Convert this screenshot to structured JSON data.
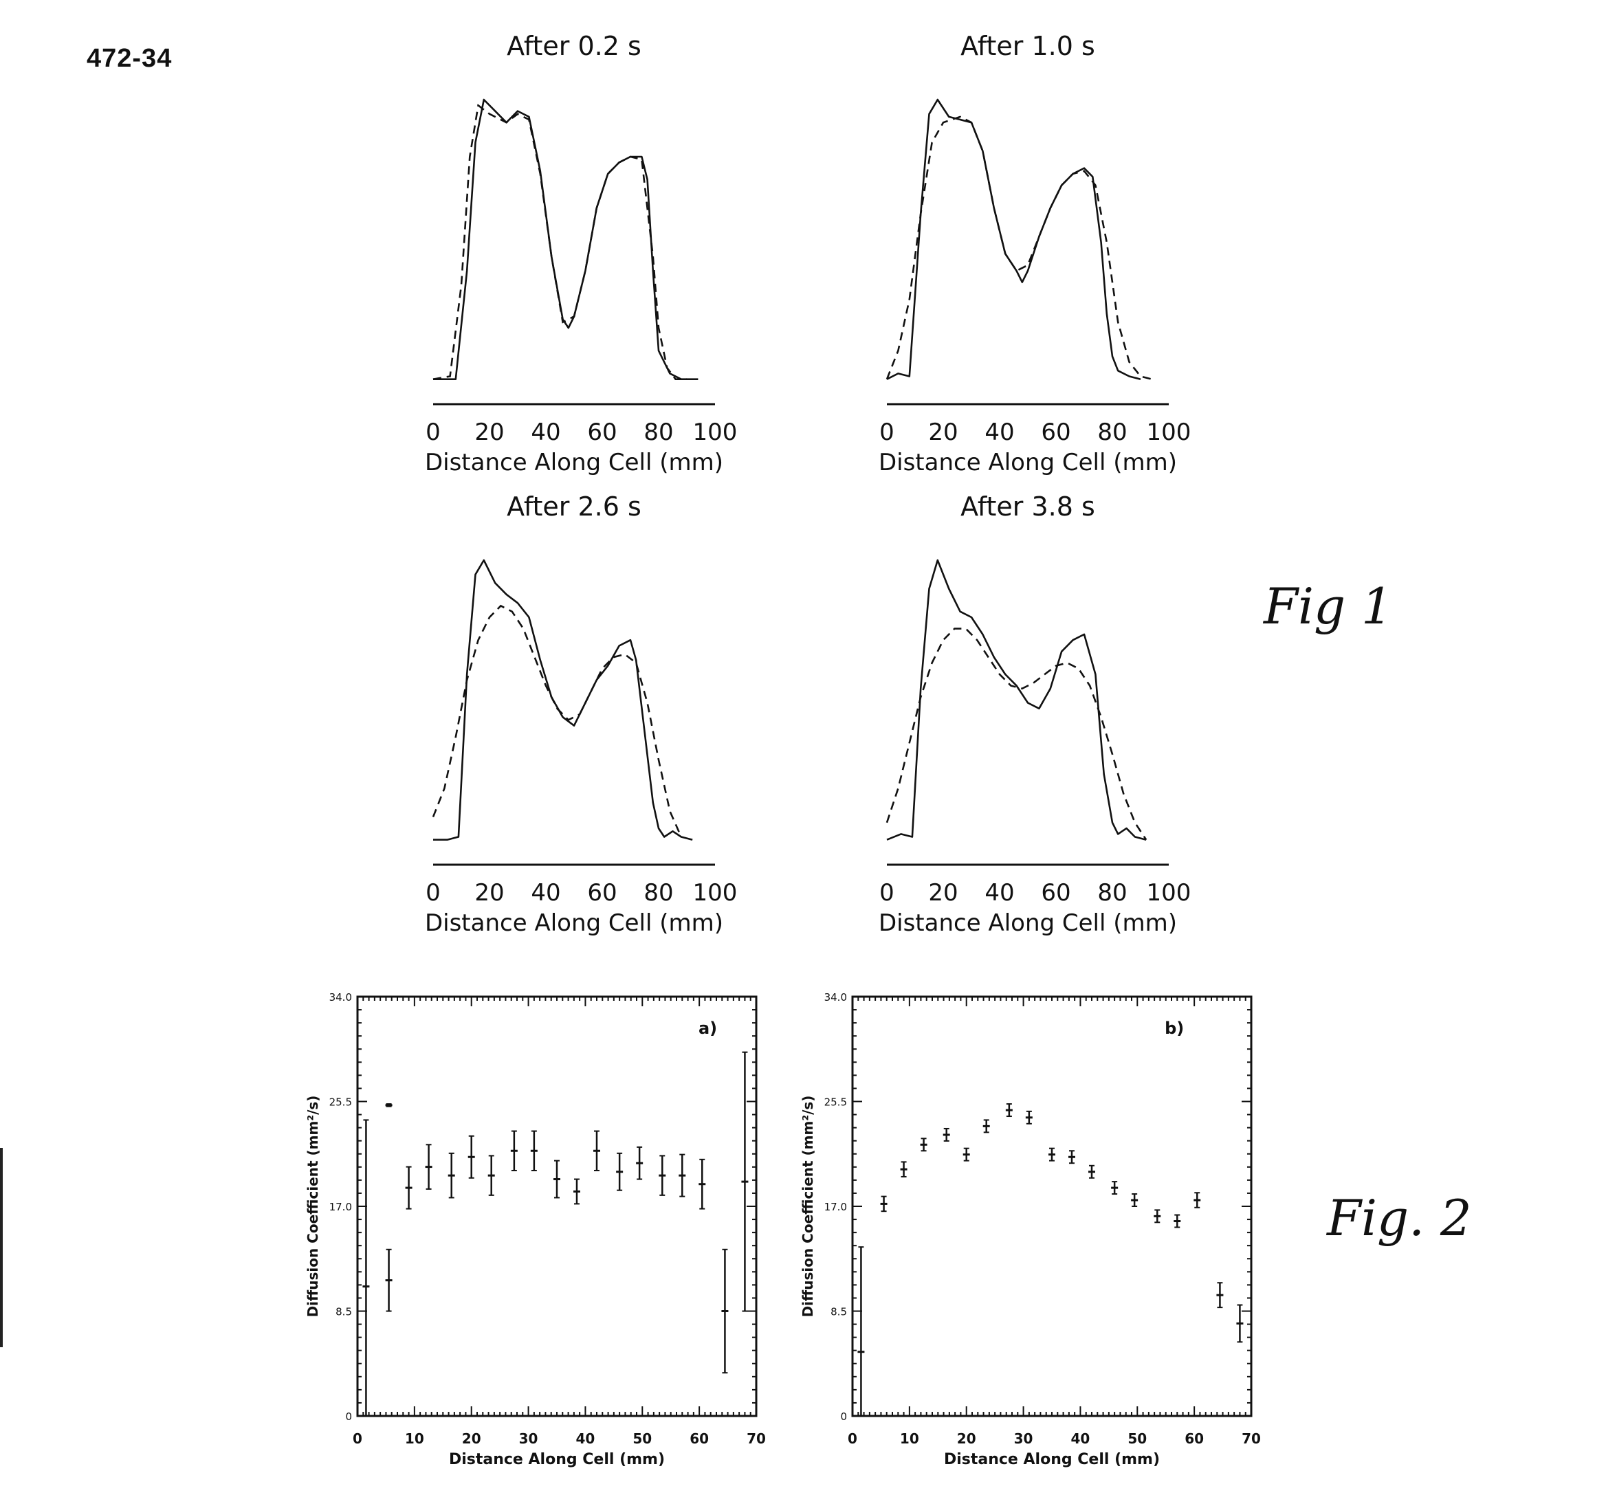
{
  "page": {
    "id": "472-34",
    "fig1_label": "Fig 1",
    "fig2_label": "Fig. 2"
  },
  "chart_data": [
    {
      "type": "line",
      "title": "After 0.2 s",
      "xlabel": "Distance Along Cell (mm)",
      "ylabel": "",
      "xlim": [
        0,
        100
      ],
      "ylim": [
        0,
        1
      ],
      "x_ticks": [
        0,
        20,
        40,
        60,
        80,
        100
      ],
      "series": [
        {
          "style": "solid",
          "x": [
            0,
            8,
            12,
            15,
            18,
            22,
            26,
            30,
            34,
            38,
            42,
            46,
            48,
            50,
            54,
            58,
            62,
            66,
            70,
            74,
            76,
            78,
            80,
            82,
            84,
            88,
            94
          ],
          "y": [
            0.02,
            0.02,
            0.4,
            0.85,
            1.0,
            0.96,
            0.92,
            0.96,
            0.94,
            0.75,
            0.45,
            0.23,
            0.2,
            0.24,
            0.4,
            0.62,
            0.74,
            0.78,
            0.8,
            0.8,
            0.72,
            0.4,
            0.12,
            0.08,
            0.04,
            0.02,
            0.02
          ]
        },
        {
          "style": "dashed",
          "x": [
            0,
            6,
            10,
            13,
            16,
            20,
            26,
            30,
            34,
            38,
            42,
            46,
            50,
            54,
            58,
            62,
            66,
            70,
            74,
            78,
            80,
            83,
            86,
            90
          ],
          "y": [
            0.02,
            0.03,
            0.35,
            0.8,
            0.98,
            0.95,
            0.92,
            0.95,
            0.93,
            0.74,
            0.45,
            0.22,
            0.24,
            0.4,
            0.62,
            0.74,
            0.78,
            0.8,
            0.79,
            0.45,
            0.2,
            0.06,
            0.02,
            0.02
          ]
        }
      ]
    },
    {
      "type": "line",
      "title": "After 1.0 s",
      "xlabel": "Distance Along Cell (mm)",
      "ylabel": "",
      "xlim": [
        0,
        100
      ],
      "ylim": [
        0,
        1
      ],
      "x_ticks": [
        0,
        20,
        40,
        60,
        80,
        100
      ],
      "series": [
        {
          "style": "solid",
          "x": [
            0,
            4,
            8,
            12,
            15,
            18,
            22,
            26,
            30,
            34,
            38,
            42,
            46,
            48,
            50,
            54,
            58,
            62,
            66,
            70,
            73,
            76,
            78,
            80,
            82,
            86,
            90
          ],
          "y": [
            0.02,
            0.04,
            0.03,
            0.6,
            0.95,
            1.0,
            0.94,
            0.93,
            0.92,
            0.82,
            0.62,
            0.46,
            0.4,
            0.36,
            0.4,
            0.52,
            0.62,
            0.7,
            0.74,
            0.76,
            0.73,
            0.5,
            0.25,
            0.1,
            0.05,
            0.03,
            0.02
          ]
        },
        {
          "style": "dashed",
          "x": [
            0,
            4,
            8,
            12,
            16,
            20,
            26,
            30,
            34,
            38,
            42,
            46,
            50,
            54,
            58,
            62,
            66,
            70,
            74,
            78,
            82,
            86,
            90,
            94
          ],
          "y": [
            0.02,
            0.12,
            0.3,
            0.6,
            0.85,
            0.92,
            0.94,
            0.92,
            0.82,
            0.62,
            0.46,
            0.4,
            0.42,
            0.52,
            0.62,
            0.7,
            0.74,
            0.75,
            0.7,
            0.5,
            0.22,
            0.08,
            0.03,
            0.02
          ]
        }
      ]
    },
    {
      "type": "line",
      "title": "After 2.6 s",
      "xlabel": "Distance Along Cell (mm)",
      "ylabel": "",
      "xlim": [
        0,
        100
      ],
      "ylim": [
        0,
        1
      ],
      "x_ticks": [
        0,
        20,
        40,
        60,
        80,
        100
      ],
      "series": [
        {
          "style": "solid",
          "x": [
            0,
            5,
            9,
            12,
            15,
            18,
            22,
            26,
            30,
            34,
            38,
            42,
            46,
            50,
            54,
            58,
            62,
            66,
            70,
            72,
            75,
            78,
            80,
            82,
            85,
            88,
            92
          ],
          "y": [
            0.02,
            0.02,
            0.03,
            0.6,
            0.95,
            1.0,
            0.92,
            0.88,
            0.85,
            0.8,
            0.65,
            0.52,
            0.45,
            0.42,
            0.5,
            0.58,
            0.63,
            0.7,
            0.72,
            0.65,
            0.4,
            0.15,
            0.06,
            0.03,
            0.05,
            0.03,
            0.02
          ]
        },
        {
          "style": "dashed",
          "x": [
            0,
            4,
            8,
            12,
            16,
            20,
            24,
            28,
            32,
            36,
            40,
            44,
            48,
            52,
            56,
            60,
            64,
            68,
            72,
            76,
            80,
            84,
            88
          ],
          "y": [
            0.1,
            0.2,
            0.38,
            0.58,
            0.72,
            0.8,
            0.84,
            0.82,
            0.76,
            0.66,
            0.56,
            0.48,
            0.44,
            0.46,
            0.54,
            0.62,
            0.66,
            0.67,
            0.64,
            0.5,
            0.3,
            0.12,
            0.03
          ]
        }
      ]
    },
    {
      "type": "line",
      "title": "After 3.8 s",
      "xlabel": "Distance Along Cell (mm)",
      "ylabel": "",
      "xlim": [
        0,
        100
      ],
      "ylim": [
        0,
        1
      ],
      "x_ticks": [
        0,
        20,
        40,
        60,
        80,
        100
      ],
      "series": [
        {
          "style": "solid",
          "x": [
            0,
            5,
            9,
            12,
            15,
            18,
            22,
            26,
            30,
            34,
            38,
            42,
            46,
            50,
            54,
            58,
            62,
            66,
            70,
            74,
            77,
            80,
            82,
            85,
            88,
            92
          ],
          "y": [
            0.02,
            0.04,
            0.03,
            0.55,
            0.9,
            1.0,
            0.9,
            0.82,
            0.8,
            0.74,
            0.66,
            0.6,
            0.56,
            0.5,
            0.48,
            0.55,
            0.68,
            0.72,
            0.74,
            0.6,
            0.25,
            0.08,
            0.04,
            0.06,
            0.03,
            0.02
          ]
        },
        {
          "style": "dashed",
          "x": [
            0,
            4,
            8,
            12,
            16,
            20,
            24,
            28,
            32,
            36,
            40,
            44,
            48,
            52,
            56,
            60,
            64,
            68,
            72,
            76,
            80,
            84,
            88,
            92
          ],
          "y": [
            0.08,
            0.2,
            0.36,
            0.52,
            0.64,
            0.72,
            0.76,
            0.76,
            0.72,
            0.66,
            0.6,
            0.56,
            0.55,
            0.57,
            0.6,
            0.63,
            0.64,
            0.62,
            0.56,
            0.45,
            0.32,
            0.18,
            0.08,
            0.02
          ]
        }
      ]
    },
    {
      "type": "scatter",
      "title": "",
      "panel_label": "a)",
      "xlabel": "Distance Along Cell (mm)",
      "ylabel": "Diffusion Coefficient (mm²/s)",
      "xlim": [
        0,
        70
      ],
      "ylim": [
        0,
        34
      ],
      "x_ticks": [
        0,
        10,
        20,
        30,
        40,
        50,
        60,
        70
      ],
      "y_ticks": [
        "0",
        "8.5",
        "17.0",
        "25.5",
        "34.0"
      ],
      "points": [
        {
          "x": 1.5,
          "y": 10.5,
          "err": 13.5
        },
        {
          "x": 5.5,
          "y": 25.2,
          "err": 0.1
        },
        {
          "x": 5.5,
          "y": 11.0,
          "err": 2.5
        },
        {
          "x": 9.0,
          "y": 18.5,
          "err": 1.7
        },
        {
          "x": 12.5,
          "y": 20.2,
          "err": 1.8
        },
        {
          "x": 16.5,
          "y": 19.5,
          "err": 1.8
        },
        {
          "x": 20.0,
          "y": 21.0,
          "err": 1.7
        },
        {
          "x": 23.5,
          "y": 19.5,
          "err": 1.6
        },
        {
          "x": 27.5,
          "y": 21.5,
          "err": 1.6
        },
        {
          "x": 31.0,
          "y": 21.5,
          "err": 1.6
        },
        {
          "x": 35.0,
          "y": 19.2,
          "err": 1.5
        },
        {
          "x": 38.5,
          "y": 18.2,
          "err": 1.0
        },
        {
          "x": 42.0,
          "y": 21.5,
          "err": 1.6
        },
        {
          "x": 46.0,
          "y": 19.8,
          "err": 1.5
        },
        {
          "x": 49.5,
          "y": 20.5,
          "err": 1.3
        },
        {
          "x": 53.5,
          "y": 19.5,
          "err": 1.6
        },
        {
          "x": 57.0,
          "y": 19.5,
          "err": 1.7
        },
        {
          "x": 60.5,
          "y": 18.8,
          "err": 2.0
        },
        {
          "x": 64.5,
          "y": 8.5,
          "err": 5.0
        },
        {
          "x": 68.0,
          "y": 19.0,
          "err": 10.5
        }
      ]
    },
    {
      "type": "scatter",
      "title": "",
      "panel_label": "b)",
      "xlabel": "Distance Along Cell (mm)",
      "ylabel": "Diffusion Coefficient (mm²/s)",
      "xlim": [
        0,
        70
      ],
      "ylim": [
        0,
        34
      ],
      "x_ticks": [
        0,
        10,
        20,
        30,
        40,
        50,
        60,
        70
      ],
      "y_ticks": [
        "0",
        "8.5",
        "17.0",
        "25.5",
        "34.0"
      ],
      "points": [
        {
          "x": 1.5,
          "y": 5.2,
          "err": 8.5
        },
        {
          "x": 5.5,
          "y": 17.2,
          "err": 0.6
        },
        {
          "x": 9.0,
          "y": 20.0,
          "err": 0.6
        },
        {
          "x": 12.5,
          "y": 22.0,
          "err": 0.5
        },
        {
          "x": 16.5,
          "y": 22.8,
          "err": 0.5
        },
        {
          "x": 20.0,
          "y": 21.2,
          "err": 0.5
        },
        {
          "x": 23.5,
          "y": 23.5,
          "err": 0.5
        },
        {
          "x": 27.5,
          "y": 24.8,
          "err": 0.5
        },
        {
          "x": 31.0,
          "y": 24.2,
          "err": 0.5
        },
        {
          "x": 35.0,
          "y": 21.2,
          "err": 0.5
        },
        {
          "x": 38.5,
          "y": 21.0,
          "err": 0.5
        },
        {
          "x": 42.0,
          "y": 19.8,
          "err": 0.5
        },
        {
          "x": 46.0,
          "y": 18.5,
          "err": 0.5
        },
        {
          "x": 49.5,
          "y": 17.5,
          "err": 0.5
        },
        {
          "x": 53.5,
          "y": 16.2,
          "err": 0.5
        },
        {
          "x": 57.0,
          "y": 15.8,
          "err": 0.5
        },
        {
          "x": 60.5,
          "y": 17.5,
          "err": 0.6
        },
        {
          "x": 64.5,
          "y": 9.8,
          "err": 1.0
        },
        {
          "x": 68.0,
          "y": 7.5,
          "err": 1.5
        }
      ]
    }
  ]
}
